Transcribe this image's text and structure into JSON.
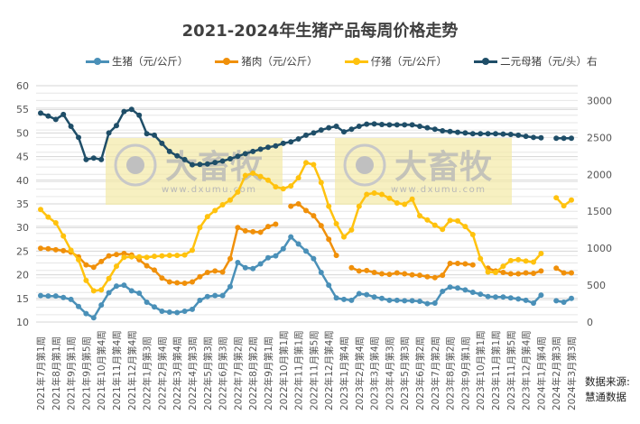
{
  "chart_data": {
    "type": "line",
    "title": "2021-2024年生猪产品每周价格走势",
    "y_left": {
      "min": 10,
      "max": 60,
      "ticks": [
        10,
        15,
        20,
        25,
        30,
        35,
        40,
        45,
        50,
        55,
        60
      ]
    },
    "y_right": {
      "min": 0,
      "max": 3200,
      "ticks": [
        0,
        500,
        1000,
        1500,
        2000,
        2500,
        3000
      ]
    },
    "grid": true,
    "legend": "top",
    "x_labels": [
      "2021年7月第1周",
      "2021年8月第1周",
      "2021年9月第1周",
      "2021年9月第5周",
      "2021年10月第4周",
      "2021年11月第4周",
      "2021年12月第4周",
      "2022年1月第3周",
      "2022年2月第4周",
      "2022年3月第4周",
      "2022年4月第3周",
      "2022年5月第3周",
      "2022年6月第3周",
      "2022年7月第2周",
      "2022年8月第2周",
      "2022年9月第1周",
      "2022年10月第1周",
      "2022年11月第1周",
      "2022年11月第5周",
      "2022年12月第4周",
      "2023年1月第4周",
      "2023年2月第4周",
      "2023年3月第4周",
      "2023年4月第3周",
      "2023年5月第3周",
      "2023年6月第2周",
      "2023年7月第2周",
      "2023年8月第2周",
      "2023年9月第1周",
      "2023年10月第1周",
      "2023年11月第1周",
      "2023年11月第5周",
      "2023年12月第4周",
      "2024年1月第4周",
      "2024年2月第3周",
      "2024年3月第3周"
    ],
    "series": [
      {
        "name": "生猪（元/公斤）",
        "axis": "left",
        "color": "#4a90b8",
        "values": [
          15.6,
          15.5,
          15.5,
          15.2,
          14.8,
          13.3,
          11.8,
          10.9,
          13.6,
          16.2,
          17.6,
          17.8,
          16.6,
          16.1,
          14.2,
          13.2,
          12.3,
          12.1,
          12.0,
          12.3,
          12.7,
          14.6,
          15.4,
          15.6,
          15.6,
          17.5,
          22.6,
          21.5,
          21.3,
          22.3,
          23.6,
          24.0,
          25.5,
          28.0,
          26.5,
          25.0,
          23.4,
          20.5,
          17.8,
          15.1,
          14.8,
          14.6,
          16.0,
          15.8,
          15.3,
          15.0,
          14.6,
          14.6,
          14.5,
          14.5,
          14.4,
          13.9,
          14.0,
          16.5,
          17.4,
          17.2,
          16.8,
          16.3,
          15.9,
          15.4,
          15.3,
          15.3,
          15.1,
          14.9,
          14.6,
          14.0,
          15.7,
          null,
          14.5,
          14.2,
          15.0
        ]
      },
      {
        "name": "猪肉（元/公斤）",
        "axis": "left",
        "color": "#f0900a",
        "values": [
          25.6,
          25.5,
          25.3,
          25.1,
          24.8,
          23.8,
          22.1,
          21.6,
          22.8,
          24.0,
          24.3,
          24.5,
          24.2,
          23.2,
          21.9,
          21.0,
          19.3,
          18.5,
          18.3,
          18.2,
          18.5,
          19.6,
          20.5,
          20.8,
          20.6,
          23.4,
          30.0,
          29.3,
          29.1,
          29.0,
          30.2,
          30.7,
          null,
          34.5,
          35.0,
          33.6,
          32.5,
          30.4,
          27.5,
          24.1,
          null,
          21.5,
          20.8,
          20.9,
          20.5,
          20.2,
          20.1,
          20.4,
          20.2,
          20.0,
          19.9,
          19.6,
          19.4,
          19.9,
          22.4,
          22.4,
          22.3,
          22.1,
          null,
          21.4,
          20.8,
          20.5,
          20.2,
          20.2,
          20.4,
          20.3,
          20.8,
          null,
          21.4,
          20.4,
          20.4
        ]
      },
      {
        "name": "仔猪（元/公斤）",
        "axis": "left",
        "color": "#ffc20e",
        "values": [
          33.8,
          32.2,
          31.0,
          28.2,
          25.2,
          23.2,
          18.8,
          16.6,
          16.8,
          19.2,
          21.8,
          23.7,
          23.8,
          23.8,
          23.7,
          23.9,
          24.0,
          24.1,
          24.1,
          24.2,
          25.2,
          30.0,
          32.3,
          33.6,
          34.8,
          35.8,
          37.5,
          41.0,
          41.5,
          40.8,
          40.0,
          38.6,
          38.2,
          38.8,
          40.5,
          43.7,
          43.3,
          39.5,
          34.5,
          30.8,
          28.0,
          29.5,
          34.5,
          37.0,
          37.3,
          37.0,
          36.2,
          35.2,
          34.9,
          36.0,
          32.5,
          31.6,
          30.5,
          29.6,
          31.5,
          31.4,
          30.2,
          28.5,
          23.4,
          20.6,
          20.5,
          21.8,
          23.0,
          23.2,
          22.9,
          22.7,
          24.5,
          null,
          36.3,
          34.6,
          35.8
        ]
      },
      {
        "name": "二元母猪（元/头）右",
        "axis": "right",
        "color": "#1f4e68",
        "values": [
          2829,
          2790,
          2744,
          2810,
          2650,
          2500,
          2200,
          2220,
          2200,
          2560,
          2660,
          2850,
          2880,
          2800,
          2550,
          2530,
          2420,
          2310,
          2250,
          2200,
          2130,
          2135,
          2140,
          2160,
          2180,
          2210,
          2244,
          2280,
          2310,
          2340,
          2366,
          2385,
          2420,
          2440,
          2480,
          2530,
          2560,
          2600,
          2630,
          2650,
          2575,
          2610,
          2650,
          2680,
          2683,
          2675,
          2670,
          2670,
          2670,
          2670,
          2650,
          2630,
          2610,
          2590,
          2580,
          2570,
          2560,
          2550,
          2549,
          2549,
          2549,
          2545,
          2540,
          2530,
          2515,
          2500,
          2495,
          null,
          2488,
          2488,
          2488
        ]
      }
    ]
  },
  "watermark": {
    "brand": "大畜牧",
    "url": "www.dxumu.com"
  },
  "source": {
    "line1": "数据来源:",
    "line2": "慧通数据"
  }
}
